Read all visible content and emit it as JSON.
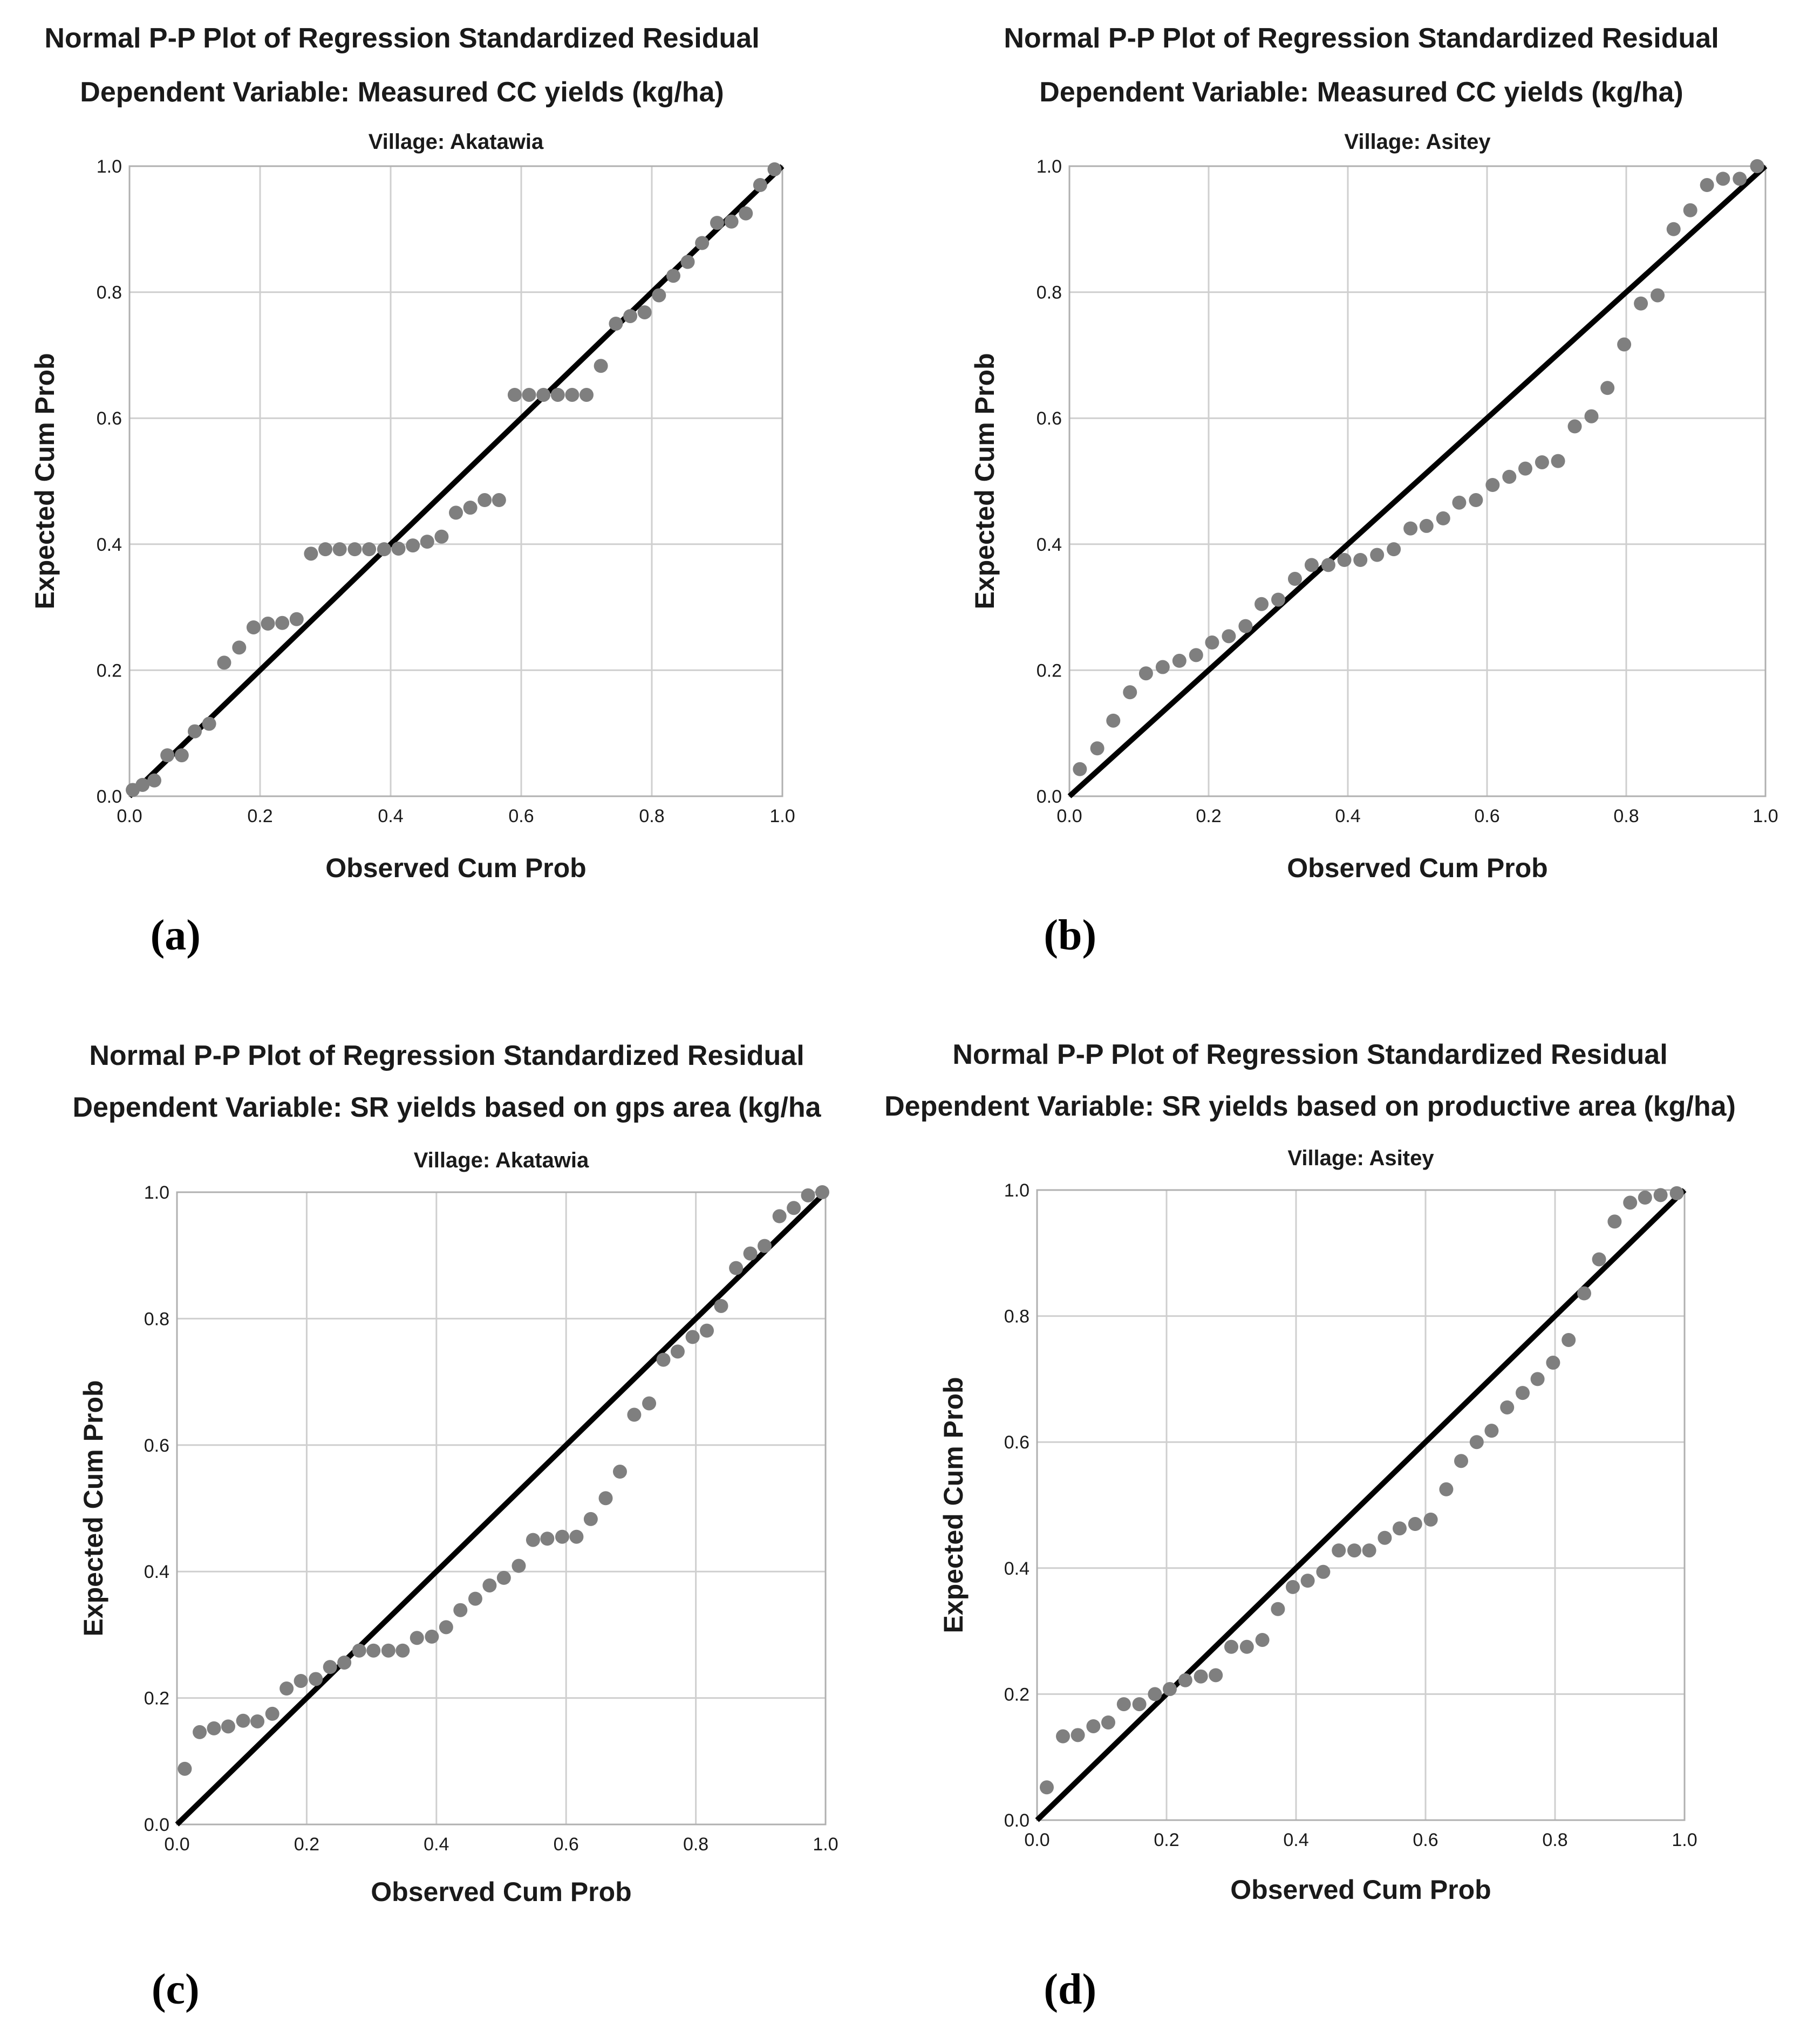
{
  "colors": {
    "points": "#7f7f7f",
    "reference_line": "#000000",
    "grid": "#cfcfcf"
  },
  "chart_data": [
    {
      "type": "scatter",
      "panel_label": "(a)",
      "title": "Normal P-P Plot of Regression Standardized Residual",
      "subtitle": "Dependent Variable: Measured CC yields (kg/ha)",
      "village": "Village: Akatawia",
      "xlabel": "Observed Cum Prob",
      "ylabel": "Expected Cum Prob",
      "xlim": [
        0,
        1
      ],
      "ylim": [
        0,
        1
      ],
      "ticks": [
        "0.0",
        "0.2",
        "0.4",
        "0.6",
        "0.8",
        "1.0"
      ],
      "reference_line": [
        [
          0,
          0
        ],
        [
          1,
          1
        ]
      ],
      "points": [
        [
          0.005,
          0.01
        ],
        [
          0.02,
          0.018
        ],
        [
          0.038,
          0.025
        ],
        [
          0.058,
          0.065
        ],
        [
          0.08,
          0.065
        ],
        [
          0.1,
          0.103
        ],
        [
          0.122,
          0.115
        ],
        [
          0.145,
          0.212
        ],
        [
          0.168,
          0.236
        ],
        [
          0.19,
          0.268
        ],
        [
          0.212,
          0.274
        ],
        [
          0.234,
          0.275
        ],
        [
          0.256,
          0.281
        ],
        [
          0.278,
          0.385
        ],
        [
          0.3,
          0.392
        ],
        [
          0.322,
          0.392
        ],
        [
          0.345,
          0.392
        ],
        [
          0.367,
          0.392
        ],
        [
          0.39,
          0.392
        ],
        [
          0.412,
          0.393
        ],
        [
          0.434,
          0.398
        ],
        [
          0.456,
          0.404
        ],
        [
          0.478,
          0.412
        ],
        [
          0.5,
          0.45
        ],
        [
          0.522,
          0.458
        ],
        [
          0.544,
          0.47
        ],
        [
          0.566,
          0.47
        ],
        [
          0.59,
          0.637
        ],
        [
          0.612,
          0.637
        ],
        [
          0.634,
          0.637
        ],
        [
          0.656,
          0.637
        ],
        [
          0.678,
          0.637
        ],
        [
          0.7,
          0.637
        ],
        [
          0.722,
          0.683
        ],
        [
          0.745,
          0.75
        ],
        [
          0.767,
          0.762
        ],
        [
          0.789,
          0.768
        ],
        [
          0.811,
          0.795
        ],
        [
          0.833,
          0.826
        ],
        [
          0.855,
          0.848
        ],
        [
          0.877,
          0.878
        ],
        [
          0.9,
          0.91
        ],
        [
          0.922,
          0.912
        ],
        [
          0.944,
          0.925
        ],
        [
          0.966,
          0.97
        ],
        [
          0.988,
          0.995
        ]
      ]
    },
    {
      "type": "scatter",
      "panel_label": "(b)",
      "title": "Normal P-P Plot of Regression Standardized Residual",
      "subtitle": "Dependent Variable: Measured CC yields (kg/ha)",
      "village": "Village: Asitey",
      "xlabel": "Observed Cum Prob",
      "ylabel": "Expected Cum Prob",
      "xlim": [
        0,
        1
      ],
      "ylim": [
        0,
        1
      ],
      "ticks": [
        "0.0",
        "0.2",
        "0.4",
        "0.6",
        "0.8",
        "1.0"
      ],
      "reference_line": [
        [
          0,
          0
        ],
        [
          1,
          1
        ]
      ],
      "points": [
        [
          0.015,
          0.043
        ],
        [
          0.04,
          0.076
        ],
        [
          0.063,
          0.12
        ],
        [
          0.087,
          0.165
        ],
        [
          0.11,
          0.195
        ],
        [
          0.134,
          0.205
        ],
        [
          0.158,
          0.215
        ],
        [
          0.182,
          0.224
        ],
        [
          0.205,
          0.244
        ],
        [
          0.229,
          0.254
        ],
        [
          0.253,
          0.27
        ],
        [
          0.276,
          0.305
        ],
        [
          0.3,
          0.312
        ],
        [
          0.324,
          0.345
        ],
        [
          0.348,
          0.367
        ],
        [
          0.372,
          0.367
        ],
        [
          0.395,
          0.375
        ],
        [
          0.418,
          0.375
        ],
        [
          0.442,
          0.383
        ],
        [
          0.466,
          0.392
        ],
        [
          0.49,
          0.425
        ],
        [
          0.513,
          0.429
        ],
        [
          0.537,
          0.441
        ],
        [
          0.56,
          0.466
        ],
        [
          0.584,
          0.47
        ],
        [
          0.608,
          0.494
        ],
        [
          0.632,
          0.507
        ],
        [
          0.655,
          0.52
        ],
        [
          0.679,
          0.53
        ],
        [
          0.702,
          0.532
        ],
        [
          0.726,
          0.587
        ],
        [
          0.75,
          0.603
        ],
        [
          0.773,
          0.648
        ],
        [
          0.797,
          0.717
        ],
        [
          0.821,
          0.782
        ],
        [
          0.845,
          0.795
        ],
        [
          0.868,
          0.9
        ],
        [
          0.892,
          0.93
        ],
        [
          0.916,
          0.97
        ],
        [
          0.939,
          0.98
        ],
        [
          0.963,
          0.98
        ],
        [
          0.988,
          1.0
        ]
      ]
    },
    {
      "type": "scatter",
      "panel_label": "(c)",
      "title": "Normal P-P Plot of Regression Standardized Residual",
      "subtitle": "Dependent Variable: SR yields based on gps area (kg/ha",
      "village": "Village: Akatawia",
      "xlabel": "Observed Cum Prob",
      "ylabel": "Expected Cum Prob",
      "xlim": [
        0,
        1
      ],
      "ylim": [
        0,
        1
      ],
      "ticks": [
        "0.0",
        "0.2",
        "0.4",
        "0.6",
        "0.8",
        "1.0"
      ],
      "reference_line": [
        [
          0,
          0
        ],
        [
          1,
          1
        ]
      ],
      "points": [
        [
          0.012,
          0.088
        ],
        [
          0.035,
          0.146
        ],
        [
          0.057,
          0.152
        ],
        [
          0.079,
          0.155
        ],
        [
          0.102,
          0.164
        ],
        [
          0.124,
          0.163
        ],
        [
          0.147,
          0.175
        ],
        [
          0.169,
          0.215
        ],
        [
          0.191,
          0.227
        ],
        [
          0.214,
          0.23
        ],
        [
          0.236,
          0.249
        ],
        [
          0.258,
          0.256
        ],
        [
          0.281,
          0.275
        ],
        [
          0.303,
          0.275
        ],
        [
          0.326,
          0.275
        ],
        [
          0.348,
          0.275
        ],
        [
          0.37,
          0.295
        ],
        [
          0.393,
          0.297
        ],
        [
          0.415,
          0.312
        ],
        [
          0.437,
          0.339
        ],
        [
          0.46,
          0.357
        ],
        [
          0.482,
          0.378
        ],
        [
          0.504,
          0.39
        ],
        [
          0.527,
          0.409
        ],
        [
          0.549,
          0.45
        ],
        [
          0.571,
          0.452
        ],
        [
          0.594,
          0.455
        ],
        [
          0.616,
          0.455
        ],
        [
          0.638,
          0.483
        ],
        [
          0.661,
          0.516
        ],
        [
          0.683,
          0.558
        ],
        [
          0.705,
          0.648
        ],
        [
          0.728,
          0.666
        ],
        [
          0.75,
          0.735
        ],
        [
          0.772,
          0.748
        ],
        [
          0.795,
          0.771
        ],
        [
          0.817,
          0.781
        ],
        [
          0.839,
          0.82
        ],
        [
          0.862,
          0.88
        ],
        [
          0.884,
          0.903
        ],
        [
          0.906,
          0.915
        ],
        [
          0.929,
          0.962
        ],
        [
          0.951,
          0.975
        ],
        [
          0.973,
          0.995
        ],
        [
          0.995,
          1.0
        ]
      ]
    },
    {
      "type": "scatter",
      "panel_label": "(d)",
      "title": "Normal P-P Plot of Regression Standardized Residual",
      "subtitle": "Dependent Variable: SR yields based on productive area (kg/ha)",
      "village": "Village: Asitey",
      "xlabel": "Observed Cum Prob",
      "ylabel": "Expected Cum Prob",
      "xlim": [
        0,
        1
      ],
      "ylim": [
        0,
        1
      ],
      "ticks": [
        "0.0",
        "0.2",
        "0.4",
        "0.6",
        "0.8",
        "1.0"
      ],
      "reference_line": [
        [
          0,
          0
        ],
        [
          1,
          1
        ]
      ],
      "points": [
        [
          0.015,
          0.052
        ],
        [
          0.04,
          0.133
        ],
        [
          0.063,
          0.135
        ],
        [
          0.087,
          0.149
        ],
        [
          0.11,
          0.155
        ],
        [
          0.134,
          0.184
        ],
        [
          0.158,
          0.184
        ],
        [
          0.182,
          0.2
        ],
        [
          0.205,
          0.208
        ],
        [
          0.229,
          0.222
        ],
        [
          0.253,
          0.228
        ],
        [
          0.276,
          0.23
        ],
        [
          0.3,
          0.275
        ],
        [
          0.324,
          0.275
        ],
        [
          0.348,
          0.286
        ],
        [
          0.372,
          0.335
        ],
        [
          0.395,
          0.37
        ],
        [
          0.418,
          0.38
        ],
        [
          0.442,
          0.394
        ],
        [
          0.466,
          0.428
        ],
        [
          0.49,
          0.428
        ],
        [
          0.513,
          0.428
        ],
        [
          0.537,
          0.448
        ],
        [
          0.56,
          0.463
        ],
        [
          0.584,
          0.47
        ],
        [
          0.608,
          0.477
        ],
        [
          0.632,
          0.525
        ],
        [
          0.655,
          0.57
        ],
        [
          0.679,
          0.6
        ],
        [
          0.702,
          0.618
        ],
        [
          0.726,
          0.655
        ],
        [
          0.75,
          0.678
        ],
        [
          0.773,
          0.7
        ],
        [
          0.797,
          0.726
        ],
        [
          0.821,
          0.762
        ],
        [
          0.845,
          0.836
        ],
        [
          0.868,
          0.89
        ],
        [
          0.892,
          0.95
        ],
        [
          0.916,
          0.98
        ],
        [
          0.939,
          0.988
        ],
        [
          0.963,
          0.992
        ],
        [
          0.988,
          0.995
        ]
      ]
    }
  ]
}
